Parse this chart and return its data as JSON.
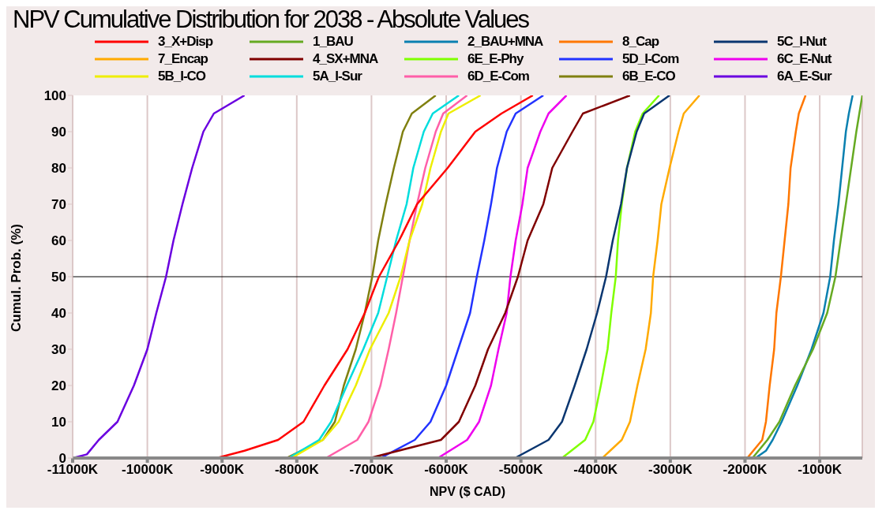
{
  "chart_data": {
    "type": "line",
    "title": "NPV Cumulative Distribution for 2038 - Absolute Values",
    "xlabel": "NPV ($ CAD)",
    "ylabel": "Cumul. Prob. (%)",
    "xlim": [
      -11000,
      -430
    ],
    "xticks": [
      {
        "value": -11000,
        "label": "-11000K"
      },
      {
        "value": -10000,
        "label": "-10000K"
      },
      {
        "value": -9000,
        "label": "-9000K"
      },
      {
        "value": -8000,
        "label": "-8000K"
      },
      {
        "value": -7000,
        "label": "-7000K"
      },
      {
        "value": -6000,
        "label": "-6000K"
      },
      {
        "value": -5000,
        "label": "-5000K"
      },
      {
        "value": -4000,
        "label": "-4000K"
      },
      {
        "value": -3000,
        "label": "-3000K"
      },
      {
        "value": -2000,
        "label": "-2000K"
      },
      {
        "value": -1000,
        "label": "-1000K"
      }
    ],
    "ylim": [
      0,
      100
    ],
    "yticks": [
      0,
      10,
      20,
      30,
      40,
      50,
      60,
      70,
      80,
      90,
      100
    ],
    "grid": "x",
    "legend": "top",
    "marker": "none",
    "line_style": "solid",
    "ref_lines": [
      {
        "axis": "y",
        "value": 50,
        "color": "#000000"
      }
    ],
    "series": [
      {
        "name": "3_X+Disp",
        "color": "#ff0000",
        "x": [
          -9070,
          -8700,
          -8250,
          -7910,
          -7630,
          -7320,
          -7090,
          -6900,
          -6630,
          -6390,
          -5980,
          -5610,
          -5260,
          -4840
        ],
        "values": [
          0,
          2,
          5,
          10,
          20,
          30,
          40,
          50,
          60,
          70,
          80,
          90,
          95,
          100
        ]
      },
      {
        "name": "1_BAU",
        "color": "#66aa22",
        "x": [
          -1900,
          -1700,
          -1540,
          -1330,
          -1090,
          -900,
          -790,
          -720,
          -650,
          -580,
          -510,
          -470,
          -430
        ],
        "values": [
          0,
          5,
          10,
          20,
          30,
          40,
          50,
          60,
          70,
          80,
          90,
          95,
          100
        ]
      },
      {
        "name": "2_BAU+MNA",
        "color": "#0a80b0",
        "x": [
          -1860,
          -1720,
          -1630,
          -1510,
          -1300,
          -1110,
          -950,
          -860,
          -810,
          -750,
          -700,
          -650,
          -610,
          -560
        ],
        "values": [
          0,
          2,
          5,
          10,
          20,
          30,
          40,
          50,
          60,
          70,
          80,
          90,
          95,
          100
        ]
      },
      {
        "name": "8_Cap",
        "color": "#ff7700",
        "x": [
          -1970,
          -1770,
          -1720,
          -1670,
          -1610,
          -1580,
          -1520,
          -1470,
          -1420,
          -1390,
          -1320,
          -1280,
          -1190
        ],
        "values": [
          0,
          5,
          10,
          20,
          30,
          40,
          50,
          60,
          70,
          80,
          90,
          95,
          100
        ]
      },
      {
        "name": "5C_I-Nut",
        "color": "#0a3670",
        "x": [
          -5080,
          -4630,
          -4450,
          -4280,
          -4120,
          -3980,
          -3860,
          -3770,
          -3660,
          -3580,
          -3450,
          -3350,
          -3010
        ],
        "values": [
          0,
          5,
          10,
          20,
          30,
          40,
          50,
          60,
          70,
          80,
          90,
          95,
          100
        ]
      },
      {
        "name": "7_Encap",
        "color": "#ffaa00",
        "x": [
          -3910,
          -3650,
          -3540,
          -3440,
          -3330,
          -3260,
          -3230,
          -3170,
          -3120,
          -3010,
          -2890,
          -2820,
          -2610
        ],
        "values": [
          0,
          5,
          10,
          20,
          30,
          40,
          50,
          60,
          70,
          80,
          90,
          95,
          100
        ]
      },
      {
        "name": "4_SX+MNA",
        "color": "#800000",
        "x": [
          -7020,
          -6070,
          -5830,
          -5610,
          -5440,
          -5210,
          -5040,
          -4910,
          -4700,
          -4580,
          -4310,
          -4170,
          -3540
        ],
        "values": [
          0,
          5,
          10,
          20,
          30,
          40,
          50,
          60,
          70,
          80,
          90,
          95,
          100
        ]
      },
      {
        "name": "6E_E-Phy",
        "color": "#80ff00",
        "x": [
          -4450,
          -4140,
          -4030,
          -3930,
          -3840,
          -3790,
          -3730,
          -3700,
          -3650,
          -3580,
          -3470,
          -3370,
          -3150
        ],
        "values": [
          0,
          5,
          10,
          20,
          30,
          40,
          50,
          60,
          70,
          80,
          90,
          95,
          100
        ]
      },
      {
        "name": "5D_I-Com",
        "color": "#2233ff",
        "x": [
          -6880,
          -6420,
          -6210,
          -6000,
          -5840,
          -5680,
          -5590,
          -5490,
          -5400,
          -5320,
          -5190,
          -5070,
          -4700
        ],
        "values": [
          0,
          5,
          10,
          20,
          30,
          40,
          50,
          60,
          70,
          80,
          90,
          95,
          100
        ]
      },
      {
        "name": "6C_E-Nut",
        "color": "#ee00ee",
        "x": [
          -6110,
          -5720,
          -5560,
          -5400,
          -5300,
          -5190,
          -5140,
          -5070,
          -4980,
          -4910,
          -4740,
          -4630,
          -4390
        ],
        "values": [
          0,
          5,
          10,
          20,
          30,
          40,
          50,
          60,
          70,
          80,
          90,
          95,
          100
        ]
      },
      {
        "name": "5B_I-CO",
        "color": "#eeee00",
        "x": [
          -8070,
          -7650,
          -7440,
          -7210,
          -7020,
          -6770,
          -6610,
          -6490,
          -6320,
          -6210,
          -6070,
          -5970,
          -5540
        ],
        "values": [
          0,
          5,
          10,
          20,
          30,
          40,
          50,
          60,
          70,
          80,
          90,
          95,
          100
        ]
      },
      {
        "name": "5A_I-Sur",
        "color": "#00dddd",
        "x": [
          -8110,
          -7700,
          -7540,
          -7330,
          -7110,
          -6910,
          -6790,
          -6670,
          -6530,
          -6440,
          -6300,
          -6180,
          -5830
        ],
        "values": [
          0,
          5,
          10,
          20,
          30,
          40,
          50,
          60,
          70,
          80,
          90,
          95,
          100
        ]
      },
      {
        "name": "6D_E-Com",
        "color": "#ff5fa8",
        "x": [
          -7610,
          -7190,
          -7040,
          -6880,
          -6770,
          -6670,
          -6580,
          -6490,
          -6390,
          -6280,
          -6140,
          -6040,
          -5720
        ],
        "values": [
          0,
          5,
          10,
          20,
          30,
          40,
          50,
          60,
          70,
          80,
          90,
          95,
          100
        ]
      },
      {
        "name": "6B_E-CO",
        "color": "#808010",
        "x": [
          -8140,
          -7650,
          -7490,
          -7370,
          -7210,
          -7090,
          -6990,
          -6910,
          -6810,
          -6700,
          -6580,
          -6460,
          -6140
        ],
        "values": [
          0,
          5,
          10,
          20,
          30,
          40,
          50,
          60,
          70,
          80,
          90,
          95,
          100
        ]
      },
      {
        "name": "6A_E-Sur",
        "color": "#6a00e0",
        "x": [
          -11000,
          -10810,
          -10650,
          -10400,
          -10180,
          -10000,
          -9880,
          -9750,
          -9650,
          -9530,
          -9400,
          -9250,
          -9110,
          -8700
        ],
        "values": [
          0,
          1,
          5,
          10,
          20,
          30,
          40,
          50,
          60,
          70,
          80,
          90,
          95,
          100
        ]
      }
    ]
  }
}
